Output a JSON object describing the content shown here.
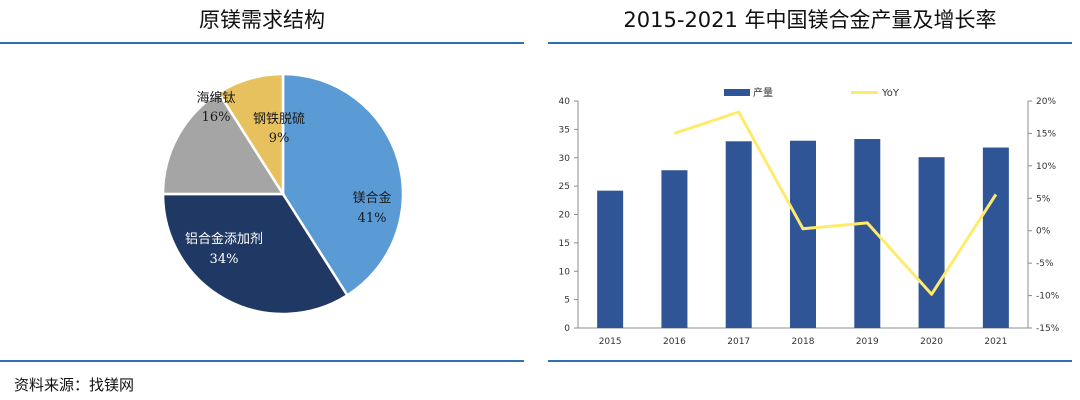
{
  "left_panel": {
    "title": "原镁需求结构"
  },
  "right_panel": {
    "title": "2015-2021 年中国镁合金产量及增长率"
  },
  "footnote": "资料来源：找镁网",
  "colors": {
    "rule": "#2f6fb5",
    "bar": "#2f5597",
    "line": "#ffeb6b",
    "pie_mg_alloy": "#5b9bd5",
    "pie_al_alloy": "#1f3864",
    "pie_ti": "#a5a5a5",
    "pie_steel": "#e8c15f"
  },
  "chart_data": [
    {
      "type": "pie",
      "title": "原镁需求结构",
      "slices": [
        {
          "label": "镁合金",
          "value": 41,
          "value_label": "41%",
          "color": "#5b9bd5"
        },
        {
          "label": "铝合金添加剂",
          "value": 34,
          "value_label": "34%",
          "color": "#1f3864"
        },
        {
          "label": "海绵钛",
          "value": 16,
          "value_label": "16%",
          "color": "#a5a5a5"
        },
        {
          "label": "钢铁脱硫",
          "value": 9,
          "value_label": "9%",
          "color": "#e8c15f"
        }
      ]
    },
    {
      "type": "bar",
      "title": "2015-2021 年中国镁合金产量及增长率",
      "categories": [
        "2015",
        "2016",
        "2017",
        "2018",
        "2019",
        "2020",
        "2021"
      ],
      "series": [
        {
          "name": "产量",
          "type": "bar",
          "axis": "left",
          "values": [
            24.2,
            27.8,
            32.9,
            33.0,
            33.3,
            30.1,
            31.8
          ]
        },
        {
          "name": "YoY",
          "type": "line",
          "axis": "right",
          "values": [
            null,
            15.0,
            18.3,
            0.3,
            1.2,
            -9.8,
            5.6
          ]
        }
      ],
      "y_left": {
        "min": 0,
        "max": 40,
        "ticks": [
          "0",
          "5",
          "10",
          "15",
          "20",
          "25",
          "30",
          "35",
          "40"
        ]
      },
      "y_right": {
        "min": -15,
        "max": 20,
        "ticks": [
          "-15%",
          "-10%",
          "-5%",
          "0%",
          "5%",
          "10%",
          "15%",
          "20%"
        ]
      },
      "legend": "top",
      "grid": false
    }
  ]
}
